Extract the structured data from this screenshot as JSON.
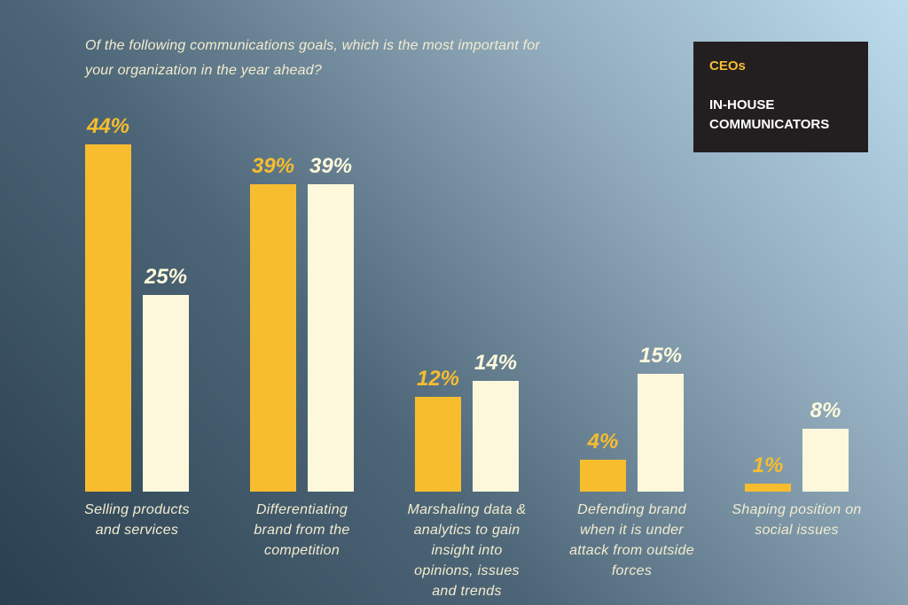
{
  "chart_data": {
    "type": "bar",
    "title": "Of the following communications goals, which is the most important for your organization in the year ahead?",
    "categories": [
      "Selling products and services",
      "Differentiating brand from the competition",
      "Marshaling data & analytics to gain insight into opinions, issues and trends",
      "Defending brand when it is under attack from outside forces",
      "Shaping position on social issues"
    ],
    "series": [
      {
        "name": "CEOs",
        "color": "#f7bd2f",
        "values": [
          44,
          39,
          12,
          4,
          1
        ],
        "value_labels": [
          "44%",
          "39%",
          "12%",
          "4%",
          "1%"
        ]
      },
      {
        "name": "IN-HOUSE COMMUNICATORS",
        "color": "#fdf8dc",
        "values": [
          25,
          39,
          14,
          15,
          8
        ],
        "value_labels": [
          "25%",
          "39%",
          "14%",
          "15%",
          "8%"
        ]
      }
    ]
  }
}
